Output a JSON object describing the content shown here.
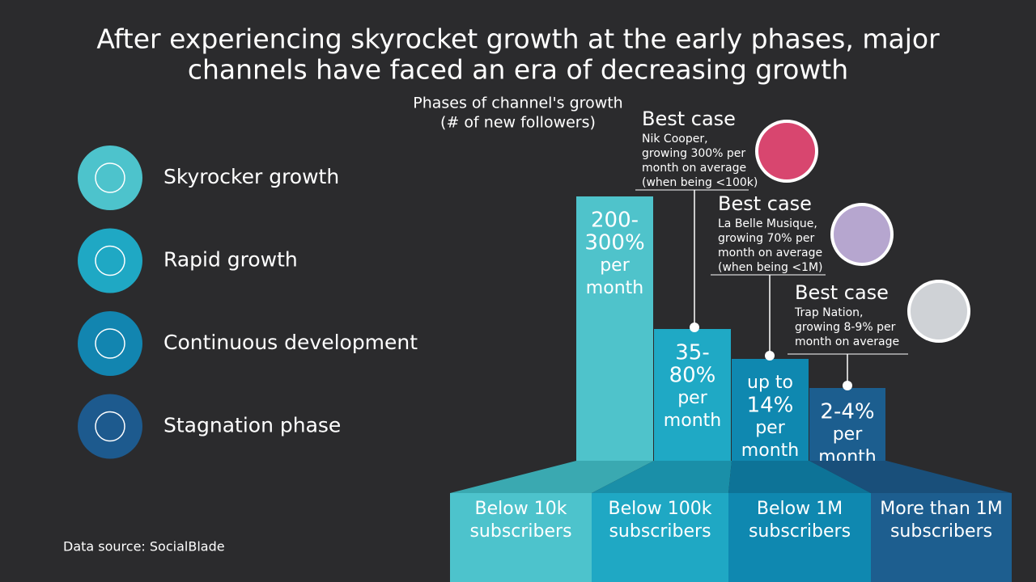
{
  "header": {
    "title": [
      "After experiencing skyrocket growth at the early phases, major",
      "channels have faced an era of decreasing growth"
    ],
    "subtitle": [
      "Phases of channel's growth",
      "(# of new followers)"
    ]
  },
  "phases": [
    {
      "label": "Skyrocker growth"
    },
    {
      "label": "Rapid growth"
    },
    {
      "label": "Continuous development"
    },
    {
      "label": "Stagnation phase"
    }
  ],
  "bars": [
    {
      "text": [
        "200-",
        "300%",
        "per",
        "month"
      ],
      "base": [
        "Below 10k",
        "subscribers"
      ]
    },
    {
      "text": [
        "35-",
        "80%",
        "per",
        "month"
      ],
      "base": [
        "Below 100k",
        "subscribers"
      ]
    },
    {
      "text": [
        "up to",
        "14%",
        "per",
        "month"
      ],
      "base": [
        "Below 1M",
        "subscribers"
      ]
    },
    {
      "text": [
        "2-4%",
        "per",
        "month"
      ],
      "base": [
        "More than 1M",
        "subscribers"
      ]
    }
  ],
  "callouts": [
    {
      "title": "Best case",
      "lines": [
        "Nik Cooper,",
        "growing 300% per",
        "month on average",
        "(when being <100k)"
      ]
    },
    {
      "title": "Best case",
      "lines": [
        "La Belle Musique,",
        "growing 70% per",
        "month on average",
        "(when being <1M)"
      ]
    },
    {
      "title": "Best case",
      "lines": [
        "Trap Nation,",
        "growing 8-9% per",
        "month on average"
      ]
    }
  ],
  "source": "Data source: SocialBlade"
}
